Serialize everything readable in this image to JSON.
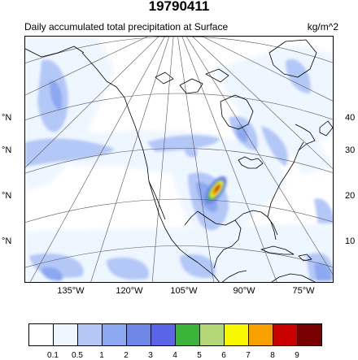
{
  "title": "19790411",
  "subtitle": "Daily accumulated total precipitation at Surface",
  "units": "kg/m^2",
  "lat_labels_left": [
    "°N",
    "°N",
    "°N",
    "°N"
  ],
  "lat_labels_right": [
    "40",
    "30",
    "20",
    "10"
  ],
  "lon_labels": [
    "135°W",
    "120°W",
    "105°W",
    "90°W",
    "75°W"
  ],
  "colorbar": {
    "colors": [
      "#ffffff",
      "#eef6ff",
      "#b4c8f8",
      "#8ca8f0",
      "#6e86e6",
      "#5a64e6",
      "#3cb43c",
      "#b4d878",
      "#f8f800",
      "#f8a000",
      "#c80000",
      "#780000"
    ],
    "labels": [
      "0.1",
      "0.5",
      "1",
      "2",
      "3",
      "4",
      "5",
      "6",
      "7",
      "8",
      "9"
    ]
  },
  "colors": {
    "coastline": "#000000",
    "gridline": "#555555"
  }
}
